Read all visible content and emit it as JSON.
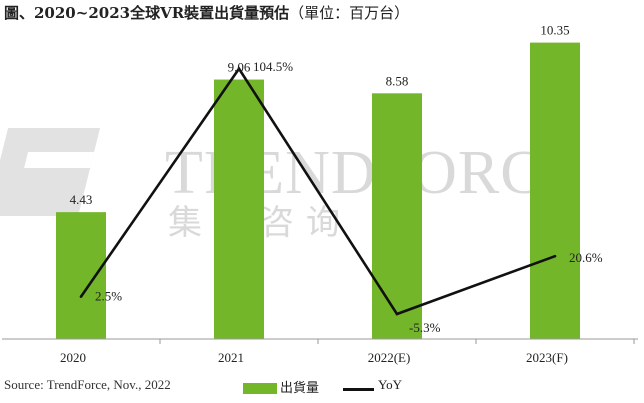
{
  "header": {
    "title": "圖、2020~2023全球VR裝置出貨量預估",
    "unit": "（單位：百万台）"
  },
  "footer": {
    "source": "Source: TrendForce, Nov., 2022",
    "legend_bar": "出貨量",
    "legend_line": "YoY"
  },
  "watermark": {
    "logo_text": "TRENDFORCE",
    "chinese_text": "集邦咨询"
  },
  "colors": {
    "bar": "#74b62a",
    "line": "#111111",
    "axis": "#999999",
    "watermark": "#d4d4d4"
  },
  "chart_data": {
    "type": "bar",
    "categories": [
      "2020",
      "2021",
      "2022(E)",
      "2023(F)"
    ],
    "series": [
      {
        "name": "出貨量",
        "type": "bar",
        "values": [
          4.43,
          9.06,
          8.58,
          10.35
        ],
        "labels": [
          "4.43",
          "9.06",
          "8.58",
          "10.35"
        ]
      },
      {
        "name": "YoY",
        "type": "line",
        "values": [
          2.5,
          104.5,
          -5.3,
          20.6
        ],
        "labels": [
          "2.5%",
          "104.5%",
          "-5.3%",
          "20.6%"
        ]
      }
    ],
    "bar_ylim": [
      0,
      11
    ],
    "line_ylim": [
      -12,
      112
    ],
    "grid": false,
    "legend": "bottom"
  }
}
